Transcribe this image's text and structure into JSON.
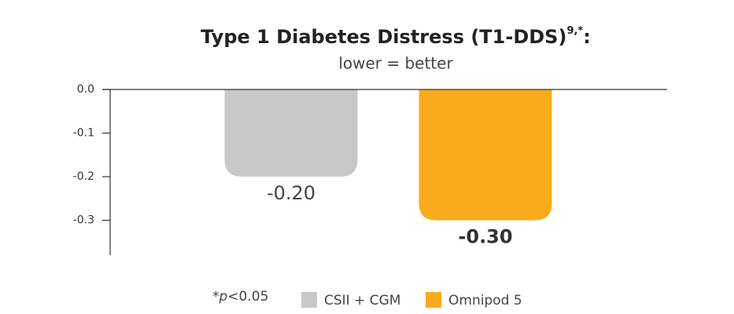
{
  "chart_data": {
    "type": "bar",
    "title": "Type 1 Diabetes Distress (T1-DDS)",
    "title_superscript": "9,*",
    "title_end": ":",
    "subtitle": "lower = better",
    "categories": [
      "CSII + CGM",
      "Omnipod 5"
    ],
    "values": [
      -0.2,
      -0.3
    ],
    "value_labels": [
      "-0.20",
      "-0.30"
    ],
    "colors": [
      "#c8c8c8",
      "#f8ab1c"
    ],
    "ylim": [
      -0.38,
      0
    ],
    "yticks": [
      {
        "value": 0,
        "label": "0.0"
      },
      -0.1,
      -0.2,
      -0.3
    ],
    "footnote": [
      "*",
      "p",
      "<0.05"
    ]
  }
}
